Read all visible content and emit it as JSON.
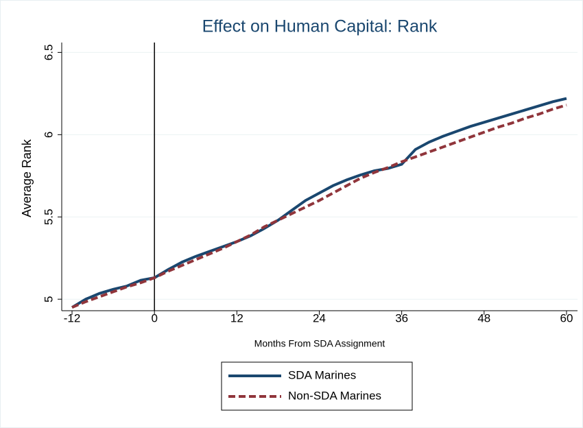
{
  "chart_data": {
    "type": "line",
    "title": "Effect on Human Capital: Rank",
    "x_label": "Months From SDA Assignment",
    "y_label": "Average Rank",
    "x": [
      -12,
      -10,
      -8,
      -6,
      -4,
      -2,
      0,
      2,
      4,
      6,
      8,
      10,
      12,
      14,
      16,
      18,
      20,
      22,
      24,
      26,
      28,
      30,
      32,
      34,
      36,
      38,
      40,
      42,
      44,
      46,
      48,
      50,
      52,
      54,
      56,
      58,
      60
    ],
    "series": [
      {
        "name": "SDA Marines",
        "color": "#1a476f",
        "dashed": false,
        "values": [
          4.95,
          5.0,
          5.035,
          5.06,
          5.08,
          5.115,
          5.13,
          5.18,
          5.225,
          5.26,
          5.29,
          5.32,
          5.35,
          5.385,
          5.43,
          5.48,
          5.54,
          5.6,
          5.645,
          5.69,
          5.725,
          5.755,
          5.78,
          5.795,
          5.82,
          5.91,
          5.955,
          5.99,
          6.02,
          6.05,
          6.075,
          6.1,
          6.125,
          6.15,
          6.175,
          6.2,
          6.22
        ]
      },
      {
        "name": "Non-SDA Marines",
        "color": "#90353b",
        "dashed": true,
        "values": [
          4.95,
          4.985,
          5.015,
          5.045,
          5.075,
          5.1,
          5.13,
          5.17,
          5.205,
          5.24,
          5.275,
          5.31,
          5.35,
          5.39,
          5.44,
          5.48,
          5.52,
          5.56,
          5.6,
          5.645,
          5.69,
          5.735,
          5.77,
          5.8,
          5.835,
          5.865,
          5.895,
          5.925,
          5.955,
          5.985,
          6.015,
          6.045,
          6.07,
          6.1,
          6.125,
          6.155,
          6.18
        ]
      }
    ],
    "xlim": [
      -13.5,
      61.6
    ],
    "ylim": [
      4.93,
      6.56
    ],
    "xticks": [
      -12,
      0,
      12,
      24,
      36,
      48,
      60
    ],
    "yticks": [
      5,
      5.5,
      6,
      6.5
    ],
    "xline": 0,
    "grid": true,
    "legend": "bottom"
  }
}
